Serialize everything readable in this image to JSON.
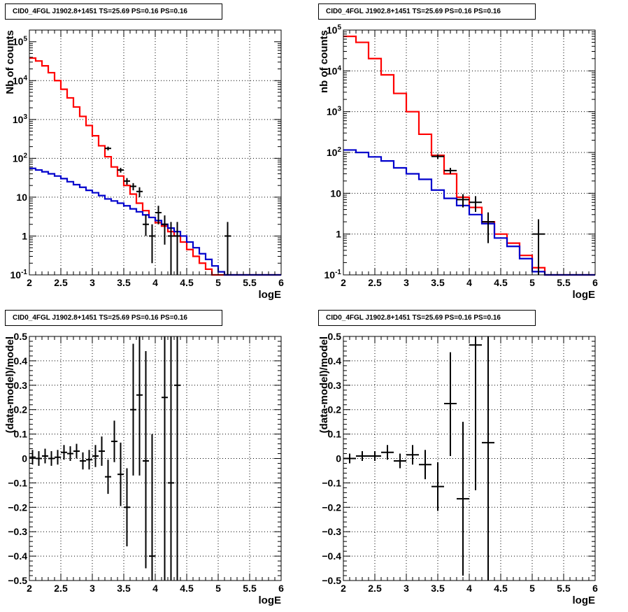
{
  "chart_data": [
    {
      "type": "step-histogram",
      "title": "CID0_4FGL J1902.8+1451 TS=25.69 PS=0.16 PS=0.16",
      "xlabel": "logE",
      "ylabel": "Nb of counts",
      "log_y": true,
      "grid": true,
      "xlim": [
        2,
        6
      ],
      "ylim": [
        0.1,
        200000
      ],
      "x_ticks": [
        "2",
        "2.5",
        "3",
        "3.5",
        "4",
        "4.5",
        "5",
        "5.5",
        "6"
      ],
      "y_ticks": [
        "10^-1",
        "1",
        "10",
        "10^2",
        "10^3",
        "10^4",
        "10^5"
      ],
      "bin_edges": [
        2.0,
        2.1,
        2.2,
        2.3,
        2.4,
        2.5,
        2.6,
        2.7,
        2.8,
        2.9,
        3.0,
        3.1,
        3.2,
        3.3,
        3.4,
        3.5,
        3.6,
        3.7,
        3.8,
        3.9,
        4.0,
        4.1,
        4.2,
        4.3,
        4.4,
        4.5,
        4.6,
        4.7,
        4.8,
        4.9,
        5.0,
        5.1,
        5.2,
        5.3,
        5.4,
        5.5,
        5.6,
        5.7,
        5.8,
        5.9,
        6.0
      ],
      "series": [
        {
          "color": "#ff0000",
          "values": [
            38000,
            32000,
            24000,
            16000,
            10000,
            6000,
            3600,
            2100,
            1200,
            700,
            380,
            210,
            110,
            60,
            35,
            20,
            12,
            7,
            4.5,
            3.0,
            2.2,
            1.8,
            1.3,
            1.0,
            0.7,
            0.45,
            0.3,
            0.2,
            0.14,
            0.1,
            0.1,
            0.1,
            0.1,
            0.1,
            0.1,
            0.1,
            0.1,
            0.1,
            0.1,
            0.1
          ]
        },
        {
          "color": "#0000cc",
          "values": [
            55,
            50,
            45,
            40,
            35,
            30,
            25,
            21,
            18,
            15,
            13,
            11,
            9,
            8,
            7,
            6,
            5,
            4.2,
            3.5,
            3.0,
            2.5,
            2.0,
            1.6,
            1.3,
            1.0,
            0.7,
            0.5,
            0.35,
            0.25,
            0.17,
            0.12,
            0.1,
            0.1,
            0.1,
            0.1,
            0.1,
            0.1,
            0.1,
            0.1,
            0.1
          ]
        }
      ],
      "points": [
        {
          "x": 3.25,
          "y": 180,
          "xerr": 0.05,
          "ylo": 160,
          "yhi": 200
        },
        {
          "x": 3.45,
          "y": 50,
          "xerr": 0.05,
          "ylo": 43,
          "yhi": 57
        },
        {
          "x": 3.55,
          "y": 26,
          "xerr": 0.05,
          "ylo": 21,
          "yhi": 31
        },
        {
          "x": 3.65,
          "y": 19,
          "xerr": 0.05,
          "ylo": 15,
          "yhi": 23
        },
        {
          "x": 3.75,
          "y": 14,
          "xerr": 0.05,
          "ylo": 10,
          "yhi": 18
        },
        {
          "x": 3.85,
          "y": 2.0,
          "xerr": 0.05,
          "ylo": 1.0,
          "yhi": 3.5
        },
        {
          "x": 3.95,
          "y": 1.0,
          "xerr": 0.05,
          "ylo": 0.2,
          "yhi": 2.0
        },
        {
          "x": 4.05,
          "y": 4.0,
          "xerr": 0.05,
          "ylo": 2.0,
          "yhi": 6.0
        },
        {
          "x": 4.15,
          "y": 2.0,
          "xerr": 0.05,
          "ylo": 0.6,
          "yhi": 3.4
        },
        {
          "x": 4.25,
          "y": 1.0,
          "xerr": 0.05,
          "ylo": 0.1,
          "yhi": 2.3
        },
        {
          "x": 4.35,
          "y": 1.0,
          "xerr": 0.05,
          "ylo": 0.1,
          "yhi": 2.3
        },
        {
          "x": 5.15,
          "y": 1.0,
          "xerr": 0.05,
          "ylo": 0.1,
          "yhi": 2.3
        }
      ]
    },
    {
      "type": "step-histogram",
      "title": "CID0_4FGL J1902.8+1451 TS=25.69 PS=0.16 PS=0.16",
      "xlabel": "logE",
      "ylabel": "nb of counts",
      "log_y": true,
      "grid": true,
      "xlim": [
        2,
        6
      ],
      "ylim": [
        0.1,
        100000
      ],
      "x_ticks": [
        "2",
        "2.5",
        "3",
        "3.5",
        "4",
        "4.5",
        "5",
        "5.5",
        "6"
      ],
      "y_ticks": [
        "10^-1",
        "1",
        "10",
        "10^2",
        "10^3",
        "10^4",
        "10^5"
      ],
      "bin_edges": [
        2.0,
        2.2,
        2.4,
        2.6,
        2.8,
        3.0,
        3.2,
        3.4,
        3.6,
        3.8,
        4.0,
        4.2,
        4.4,
        4.6,
        4.8,
        5.0,
        5.2,
        5.4,
        5.6,
        5.8,
        6.0
      ],
      "series": [
        {
          "color": "#ff0000",
          "values": [
            70000,
            50000,
            20000,
            8000,
            2800,
            1000,
            280,
            85,
            30,
            8,
            4.5,
            2.0,
            1.0,
            0.6,
            0.3,
            0.15,
            0.1,
            0.1,
            0.1,
            0.1
          ]
        },
        {
          "color": "#0000cc",
          "values": [
            115,
            100,
            78,
            62,
            42,
            30,
            22,
            12,
            7.5,
            5.0,
            3.0,
            1.8,
            0.8,
            0.5,
            0.25,
            0.12,
            0.1,
            0.1,
            0.1,
            0.1
          ]
        }
      ],
      "points": [
        {
          "x": 3.5,
          "y": 80,
          "xerr": 0.1,
          "ylo": 70,
          "yhi": 90
        },
        {
          "x": 3.7,
          "y": 36,
          "xerr": 0.1,
          "ylo": 30,
          "yhi": 42
        },
        {
          "x": 3.9,
          "y": 7.0,
          "xerr": 0.1,
          "ylo": 4.5,
          "yhi": 9.5
        },
        {
          "x": 4.1,
          "y": 6.0,
          "xerr": 0.1,
          "ylo": 3.5,
          "yhi": 8.5
        },
        {
          "x": 4.3,
          "y": 2.0,
          "xerr": 0.1,
          "ylo": 0.6,
          "yhi": 3.4
        },
        {
          "x": 5.1,
          "y": 1.0,
          "xerr": 0.1,
          "ylo": 0.1,
          "yhi": 2.3
        }
      ]
    },
    {
      "type": "scatter",
      "title": "CID0_4FGL J1902.8+1451 TS=25.69 PS=0.16 PS=0.16",
      "xlabel": "logE",
      "ylabel": "(data-model)/model",
      "log_y": false,
      "grid": true,
      "xlim": [
        2,
        6
      ],
      "ylim": [
        -0.5,
        0.5
      ],
      "x_ticks": [
        "2",
        "2.5",
        "3",
        "3.5",
        "4",
        "4.5",
        "5",
        "5.5",
        "6"
      ],
      "y_ticks": [
        "−0.5",
        "−0.4",
        "−0.3",
        "−0.2",
        "−0.1",
        "0",
        "0.1",
        "0.2",
        "0.3",
        "0.4",
        "0.5"
      ],
      "points": [
        {
          "x": 2.05,
          "y": 0.005,
          "xerr": 0.05,
          "ylo": -0.025,
          "yhi": 0.035
        },
        {
          "x": 2.15,
          "y": 0.0,
          "xerr": 0.05,
          "ylo": -0.03,
          "yhi": 0.03
        },
        {
          "x": 2.25,
          "y": 0.01,
          "xerr": 0.05,
          "ylo": -0.02,
          "yhi": 0.04
        },
        {
          "x": 2.35,
          "y": 0.0,
          "xerr": 0.05,
          "ylo": -0.03,
          "yhi": 0.03
        },
        {
          "x": 2.45,
          "y": 0.005,
          "xerr": 0.05,
          "ylo": -0.025,
          "yhi": 0.035
        },
        {
          "x": 2.55,
          "y": 0.025,
          "xerr": 0.05,
          "ylo": -0.005,
          "yhi": 0.055
        },
        {
          "x": 2.65,
          "y": 0.02,
          "xerr": 0.05,
          "ylo": -0.01,
          "yhi": 0.05
        },
        {
          "x": 2.75,
          "y": 0.03,
          "xerr": 0.05,
          "ylo": 0.0,
          "yhi": 0.06
        },
        {
          "x": 2.85,
          "y": -0.01,
          "xerr": 0.05,
          "ylo": -0.045,
          "yhi": 0.025
        },
        {
          "x": 2.95,
          "y": -0.005,
          "xerr": 0.05,
          "ylo": -0.045,
          "yhi": 0.035
        },
        {
          "x": 3.05,
          "y": 0.01,
          "xerr": 0.05,
          "ylo": -0.035,
          "yhi": 0.055
        },
        {
          "x": 3.15,
          "y": 0.03,
          "xerr": 0.05,
          "ylo": -0.03,
          "yhi": 0.09
        },
        {
          "x": 3.25,
          "y": -0.075,
          "xerr": 0.05,
          "ylo": -0.145,
          "yhi": -0.005
        },
        {
          "x": 3.35,
          "y": 0.07,
          "xerr": 0.05,
          "ylo": -0.015,
          "yhi": 0.155
        },
        {
          "x": 3.45,
          "y": -0.065,
          "xerr": 0.05,
          "ylo": -0.195,
          "yhi": 0.065
        },
        {
          "x": 3.55,
          "y": -0.2,
          "xerr": 0.05,
          "ylo": -0.36,
          "yhi": -0.04
        },
        {
          "x": 3.65,
          "y": 0.2,
          "xerr": 0.05,
          "ylo": -0.07,
          "yhi": 0.47
        },
        {
          "x": 3.75,
          "y": 0.26,
          "xerr": 0.05,
          "ylo": -0.07,
          "yhi": 0.5
        },
        {
          "x": 3.85,
          "y": -0.01,
          "xerr": 0.05,
          "ylo": -0.45,
          "yhi": 0.44
        },
        {
          "x": 3.95,
          "y": -0.4,
          "xerr": 0.05,
          "ylo": -0.5,
          "yhi": 0.1
        },
        {
          "x": 4.15,
          "y": 0.25,
          "xerr": 0.05,
          "ylo": -0.5,
          "yhi": 0.5
        },
        {
          "x": 4.25,
          "y": -0.1,
          "xerr": 0.05,
          "ylo": -0.5,
          "yhi": 0.5
        },
        {
          "x": 4.35,
          "y": 0.3,
          "xerr": 0.05,
          "ylo": -0.5,
          "yhi": 0.5
        }
      ]
    },
    {
      "type": "scatter",
      "title": "CID0_4FGL J1902.8+1451 TS=25.69 PS=0.16 PS=0.16",
      "xlabel": "logE",
      "ylabel": "(data-model)/model",
      "log_y": false,
      "grid": true,
      "xlim": [
        2,
        6
      ],
      "ylim": [
        -0.5,
        0.5
      ],
      "x_ticks": [
        "2",
        "2.5",
        "3",
        "3.5",
        "4",
        "4.5",
        "5",
        "5.5",
        "6"
      ],
      "y_ticks": [
        "−0.5",
        "−0.4",
        "−0.3",
        "−0.2",
        "−0.1",
        "0",
        "0.1",
        "0.2",
        "0.3",
        "0.4",
        "0.5"
      ],
      "points": [
        {
          "x": 2.1,
          "y": 0.0,
          "xerr": 0.1,
          "ylo": -0.02,
          "yhi": 0.02
        },
        {
          "x": 2.3,
          "y": 0.01,
          "xerr": 0.1,
          "ylo": -0.01,
          "yhi": 0.03
        },
        {
          "x": 2.5,
          "y": 0.01,
          "xerr": 0.1,
          "ylo": -0.01,
          "yhi": 0.03
        },
        {
          "x": 2.7,
          "y": 0.025,
          "xerr": 0.1,
          "ylo": -0.005,
          "yhi": 0.055
        },
        {
          "x": 2.9,
          "y": -0.01,
          "xerr": 0.1,
          "ylo": -0.04,
          "yhi": 0.02
        },
        {
          "x": 3.1,
          "y": 0.015,
          "xerr": 0.1,
          "ylo": -0.025,
          "yhi": 0.055
        },
        {
          "x": 3.3,
          "y": -0.025,
          "xerr": 0.1,
          "ylo": -0.085,
          "yhi": 0.035
        },
        {
          "x": 3.5,
          "y": -0.115,
          "xerr": 0.1,
          "ylo": -0.215,
          "yhi": -0.015
        },
        {
          "x": 3.7,
          "y": 0.225,
          "xerr": 0.1,
          "ylo": 0.01,
          "yhi": 0.435
        },
        {
          "x": 3.9,
          "y": -0.165,
          "xerr": 0.1,
          "ylo": -0.48,
          "yhi": 0.15
        },
        {
          "x": 4.1,
          "y": 0.465,
          "xerr": 0.1,
          "ylo": -0.13,
          "yhi": 0.5
        },
        {
          "x": 4.3,
          "y": 0.065,
          "xerr": 0.1,
          "ylo": -0.5,
          "yhi": 0.5
        }
      ]
    }
  ]
}
